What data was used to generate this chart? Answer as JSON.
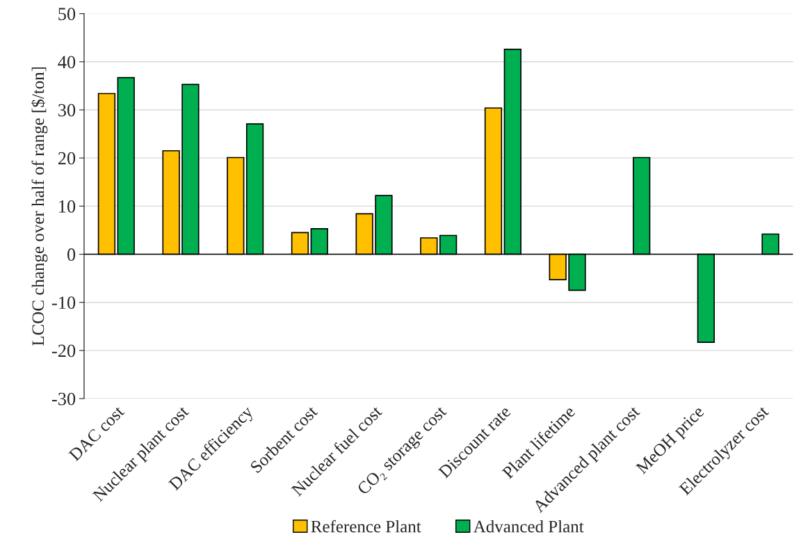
{
  "chart_data": {
    "type": "bar",
    "ylabel": "LCOC change over half of range [$/ton]",
    "categories": [
      "DAC cost",
      "Nuclear plant cost",
      "DAC efficiency",
      "Sorbent cost",
      "Nuclear fuel cost",
      "CO₂ storage cost",
      "Discount rate",
      "Plant lifetime",
      "Advanced plant cost",
      "MeOH price",
      "Electrolyzer cost"
    ],
    "series": [
      {
        "name": "Reference Plant",
        "color": "#ffc000",
        "values": [
          33.4,
          21.5,
          20.1,
          4.5,
          8.4,
          3.4,
          30.4,
          -5.3,
          null,
          null,
          null
        ]
      },
      {
        "name": "Advanced Plant",
        "color": "#00b050",
        "values": [
          36.7,
          35.3,
          27.1,
          5.3,
          12.2,
          3.9,
          42.6,
          -7.5,
          20.1,
          -18.3,
          4.2
        ]
      }
    ],
    "ylim": [
      -30,
      50
    ],
    "yticks": [
      -30,
      -20,
      -10,
      0,
      10,
      20,
      30,
      40,
      50
    ],
    "grid": "y",
    "legend": "bottom"
  }
}
